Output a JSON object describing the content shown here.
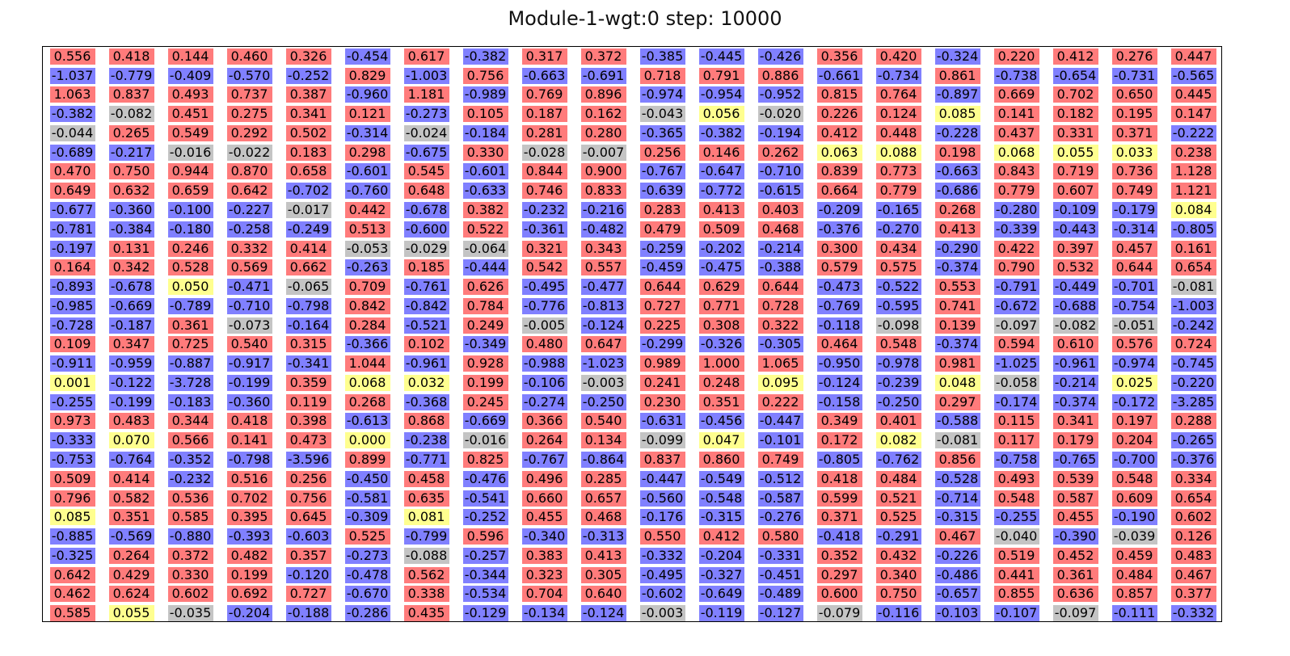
{
  "chart_data": {
    "type": "heatmap",
    "title": "Module-1-wgt:0 step: 10000",
    "rows": 30,
    "cols": 20,
    "values": [
      [
        0.556,
        0.418,
        0.144,
        0.46,
        0.326,
        -0.454,
        0.617,
        -0.382,
        0.317,
        0.372,
        -0.385,
        -0.445,
        -0.426,
        0.356,
        0.42,
        -0.324,
        0.22,
        0.412,
        0.276,
        0.447
      ],
      [
        -1.037,
        -0.779,
        -0.409,
        -0.57,
        -0.252,
        0.829,
        -1.003,
        0.756,
        -0.663,
        -0.691,
        0.718,
        0.791,
        0.886,
        -0.661,
        -0.734,
        0.861,
        -0.738,
        -0.654,
        -0.731,
        -0.565
      ],
      [
        1.063,
        0.837,
        0.493,
        0.737,
        0.387,
        -0.96,
        1.181,
        -0.989,
        0.769,
        0.896,
        -0.974,
        -0.954,
        -0.952,
        0.815,
        0.764,
        -0.897,
        0.669,
        0.702,
        0.65,
        0.445
      ],
      [
        -0.382,
        -0.082,
        0.451,
        0.275,
        0.341,
        0.121,
        -0.273,
        0.105,
        0.187,
        0.162,
        -0.043,
        0.056,
        -0.02,
        0.226,
        0.124,
        0.085,
        0.141,
        0.182,
        0.195,
        0.147
      ],
      [
        -0.044,
        0.265,
        0.549,
        0.292,
        0.502,
        -0.314,
        -0.024,
        -0.184,
        0.281,
        0.28,
        -0.365,
        -0.382,
        -0.194,
        0.412,
        0.448,
        -0.228,
        0.437,
        0.331,
        0.371,
        -0.222
      ],
      [
        -0.689,
        -0.217,
        -0.016,
        -0.022,
        0.183,
        0.298,
        -0.675,
        0.33,
        -0.028,
        -0.007,
        0.256,
        0.146,
        0.262,
        0.063,
        0.088,
        0.198,
        0.068,
        0.055,
        0.033,
        0.238
      ],
      [
        0.47,
        0.75,
        0.944,
        0.87,
        0.658,
        -0.601,
        0.545,
        -0.601,
        0.844,
        0.9,
        -0.767,
        -0.647,
        -0.71,
        0.839,
        0.773,
        -0.663,
        0.843,
        0.719,
        0.736,
        1.128
      ],
      [
        0.649,
        0.632,
        0.659,
        0.642,
        -0.702,
        -0.76,
        0.648,
        -0.633,
        0.746,
        0.833,
        -0.639,
        -0.772,
        -0.615,
        0.664,
        0.779,
        -0.686,
        0.779,
        0.607,
        0.749,
        1.121
      ],
      [
        -0.677,
        -0.36,
        -0.1,
        -0.227,
        -0.017,
        0.442,
        -0.678,
        0.382,
        -0.232,
        -0.216,
        0.283,
        0.413,
        0.403,
        -0.209,
        -0.165,
        0.268,
        -0.28,
        -0.109,
        -0.179,
        0.084
      ],
      [
        -0.781,
        -0.384,
        -0.18,
        -0.258,
        -0.249,
        0.513,
        -0.6,
        0.522,
        -0.361,
        -0.482,
        0.479,
        0.509,
        0.468,
        -0.376,
        -0.27,
        0.413,
        -0.339,
        -0.443,
        -0.314,
        -0.805
      ],
      [
        -0.197,
        0.131,
        0.246,
        0.332,
        0.414,
        -0.053,
        -0.029,
        -0.064,
        0.321,
        0.343,
        -0.259,
        -0.202,
        -0.214,
        0.3,
        0.434,
        -0.29,
        0.422,
        0.397,
        0.457,
        0.161
      ],
      [
        0.164,
        0.342,
        0.528,
        0.569,
        0.662,
        -0.263,
        0.185,
        -0.444,
        0.542,
        0.557,
        -0.459,
        -0.475,
        -0.388,
        0.579,
        0.575,
        -0.374,
        0.79,
        0.532,
        0.644,
        0.654
      ],
      [
        -0.893,
        -0.678,
        0.05,
        -0.471,
        -0.065,
        0.709,
        -0.761,
        0.626,
        -0.495,
        -0.477,
        0.644,
        0.629,
        0.644,
        -0.473,
        -0.522,
        0.553,
        -0.791,
        -0.449,
        -0.701,
        -0.081
      ],
      [
        -0.985,
        -0.669,
        -0.789,
        -0.71,
        -0.798,
        0.842,
        -0.842,
        0.784,
        -0.776,
        -0.813,
        0.727,
        0.771,
        0.728,
        -0.769,
        -0.595,
        0.741,
        -0.672,
        -0.688,
        -0.754,
        -1.003
      ],
      [
        -0.728,
        -0.187,
        0.361,
        -0.073,
        -0.164,
        0.284,
        -0.521,
        0.249,
        -0.005,
        -0.124,
        0.225,
        0.308,
        0.322,
        -0.118,
        -0.098,
        0.139,
        -0.097,
        -0.082,
        -0.051,
        -0.242
      ],
      [
        0.109,
        0.347,
        0.725,
        0.54,
        0.315,
        -0.366,
        0.102,
        -0.349,
        0.48,
        0.647,
        -0.299,
        -0.326,
        -0.305,
        0.464,
        0.548,
        -0.374,
        0.594,
        0.61,
        0.576,
        0.724
      ],
      [
        -0.911,
        -0.959,
        -0.887,
        -0.917,
        -0.341,
        1.044,
        -0.961,
        0.928,
        -0.988,
        -1.023,
        0.989,
        1.0,
        1.065,
        -0.95,
        -0.978,
        0.981,
        -1.025,
        -0.961,
        -0.974,
        -0.745
      ],
      [
        0.001,
        -0.122,
        -3.728,
        -0.199,
        0.359,
        0.068,
        0.032,
        0.199,
        -0.106,
        -0.003,
        0.241,
        0.248,
        0.095,
        -0.124,
        -0.239,
        0.048,
        -0.058,
        -0.214,
        0.025,
        -0.22
      ],
      [
        -0.255,
        -0.199,
        -0.183,
        -0.36,
        0.119,
        0.268,
        -0.368,
        0.245,
        -0.274,
        -0.25,
        0.23,
        0.351,
        0.222,
        -0.158,
        -0.25,
        0.297,
        -0.174,
        -0.374,
        -0.172,
        -3.285
      ],
      [
        0.973,
        0.483,
        0.344,
        0.418,
        0.398,
        -0.613,
        0.868,
        -0.669,
        0.366,
        0.54,
        -0.631,
        -0.456,
        -0.447,
        0.349,
        0.401,
        -0.588,
        0.115,
        0.341,
        0.197,
        0.288
      ],
      [
        -0.333,
        0.07,
        0.566,
        0.141,
        0.473,
        0.0,
        -0.238,
        -0.016,
        0.264,
        0.134,
        -0.099,
        0.047,
        -0.101,
        0.172,
        0.082,
        -0.081,
        0.117,
        0.179,
        0.204,
        -0.265
      ],
      [
        -0.753,
        -0.764,
        -0.352,
        -0.798,
        -3.596,
        0.899,
        -0.771,
        0.825,
        -0.767,
        -0.864,
        0.837,
        0.86,
        0.749,
        -0.805,
        -0.762,
        0.856,
        -0.758,
        -0.765,
        -0.7,
        -0.376
      ],
      [
        0.509,
        0.414,
        -0.232,
        0.516,
        0.256,
        -0.45,
        0.458,
        -0.476,
        0.496,
        0.285,
        -0.447,
        -0.549,
        -0.512,
        0.418,
        0.484,
        -0.528,
        0.493,
        0.539,
        0.548,
        0.334
      ],
      [
        0.796,
        0.582,
        0.536,
        0.702,
        0.756,
        -0.581,
        0.635,
        -0.541,
        0.66,
        0.657,
        -0.56,
        -0.548,
        -0.587,
        0.599,
        0.521,
        -0.714,
        0.548,
        0.587,
        0.609,
        0.654
      ],
      [
        0.085,
        0.351,
        0.585,
        0.395,
        0.645,
        -0.309,
        0.081,
        -0.252,
        0.455,
        0.468,
        -0.176,
        -0.315,
        -0.276,
        0.371,
        0.525,
        -0.315,
        -0.255,
        0.455,
        -0.19,
        0.602
      ],
      [
        -0.885,
        -0.569,
        -0.88,
        -0.393,
        -0.603,
        0.525,
        -0.799,
        0.596,
        -0.34,
        -0.313,
        0.55,
        0.412,
        0.58,
        -0.418,
        -0.291,
        0.467,
        -0.04,
        -0.39,
        -0.039,
        0.126
      ],
      [
        -0.325,
        0.264,
        0.372,
        0.482,
        0.357,
        -0.273,
        -0.088,
        -0.257,
        0.383,
        0.413,
        -0.332,
        -0.204,
        -0.331,
        0.352,
        0.432,
        -0.226,
        0.519,
        0.452,
        0.459,
        0.483
      ],
      [
        0.642,
        0.429,
        0.33,
        0.199,
        -0.12,
        -0.478,
        0.562,
        -0.344,
        0.323,
        0.305,
        -0.495,
        -0.327,
        -0.451,
        0.297,
        0.34,
        -0.486,
        0.441,
        0.361,
        0.484,
        0.467
      ],
      [
        0.462,
        0.624,
        0.602,
        0.692,
        0.727,
        -0.67,
        0.338,
        -0.534,
        0.704,
        0.64,
        -0.602,
        -0.649,
        -0.489,
        0.6,
        0.75,
        -0.657,
        0.855,
        0.636,
        0.857,
        0.377
      ],
      [
        0.585,
        0.055,
        -0.035,
        -0.204,
        -0.188,
        -0.286,
        0.435,
        -0.129,
        -0.134,
        -0.124,
        -0.003,
        -0.119,
        -0.127,
        -0.079,
        -0.116,
        -0.103,
        -0.107,
        -0.097,
        -0.111,
        -0.332
      ]
    ],
    "number_format": "3 decimals",
    "color_scale": {
      "positive": "#ff7b7b",
      "small_positive": "#ffff8f",
      "near_zero": "#c4c4c4",
      "negative": "#8080ff"
    },
    "grid": false,
    "legend": "none"
  }
}
